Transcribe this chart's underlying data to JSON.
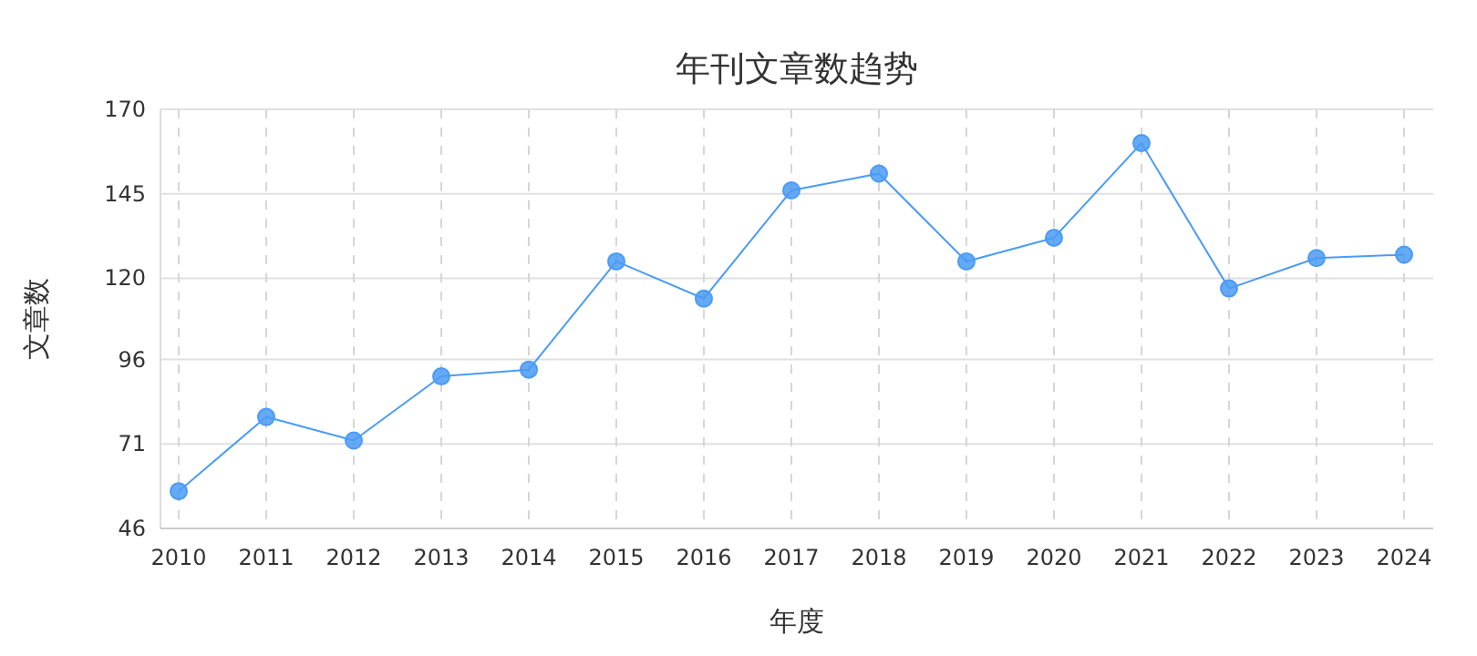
{
  "chart_data": {
    "type": "line",
    "title": "年刊文章数趋势",
    "xlabel": "年度",
    "ylabel": "文章数",
    "categories": [
      "2010",
      "2011",
      "2012",
      "2013",
      "2014",
      "2015",
      "2016",
      "2017",
      "2018",
      "2019",
      "2020",
      "2021",
      "2022",
      "2023",
      "2024"
    ],
    "series": [
      {
        "color": "#4a9bf5",
        "values": [
          57,
          79,
          72,
          91,
          93,
          125,
          114,
          146,
          151,
          125,
          132,
          160,
          117,
          126,
          127
        ]
      }
    ],
    "ylim": [
      46,
      170
    ],
    "yticks": [
      46,
      71,
      96,
      120,
      145,
      170
    ],
    "grid": true,
    "marker": "circle",
    "line_style": "solid"
  }
}
